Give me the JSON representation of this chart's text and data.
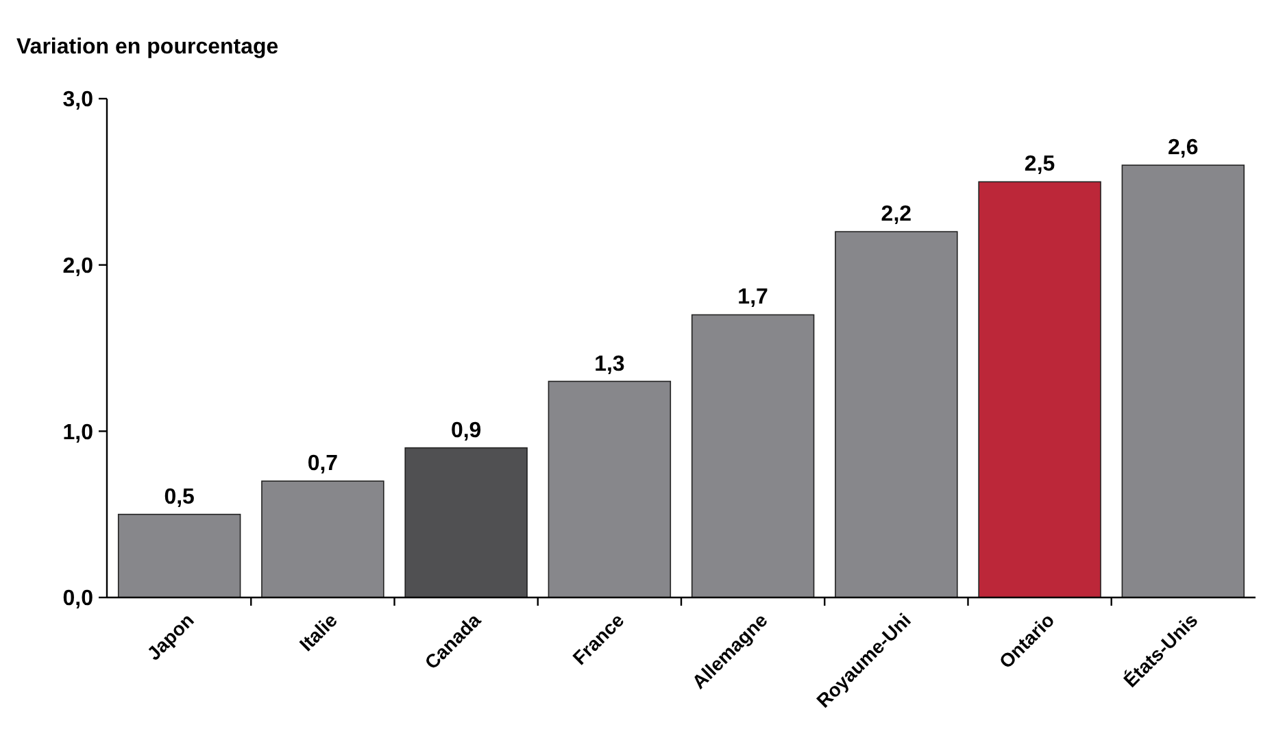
{
  "chart_data": {
    "type": "bar",
    "ylabel": "Variation en pourcentage",
    "categories": [
      "Japon",
      "Italie",
      "Canada",
      "France",
      "Allemagne",
      "Royaume-Uni",
      "Ontario",
      "États-Unis"
    ],
    "values": [
      0.5,
      0.7,
      0.9,
      1.3,
      1.7,
      2.2,
      2.5,
      2.6
    ],
    "colors": [
      "#87878b",
      "#87878b",
      "#505052",
      "#87878b",
      "#87878b",
      "#87878b",
      "#bc2739",
      "#87878b"
    ],
    "value_labels": [
      "0,5",
      "0,7",
      "0,9",
      "1,3",
      "1,7",
      "2,2",
      "2,5",
      "2,6"
    ],
    "ylim": [
      0,
      3
    ],
    "yticks": [
      {
        "value": 0,
        "label": "0,0"
      },
      {
        "value": 1,
        "label": "1,0"
      },
      {
        "value": 2,
        "label": "2,0"
      },
      {
        "value": 3,
        "label": "3,0"
      }
    ],
    "grid": false
  }
}
